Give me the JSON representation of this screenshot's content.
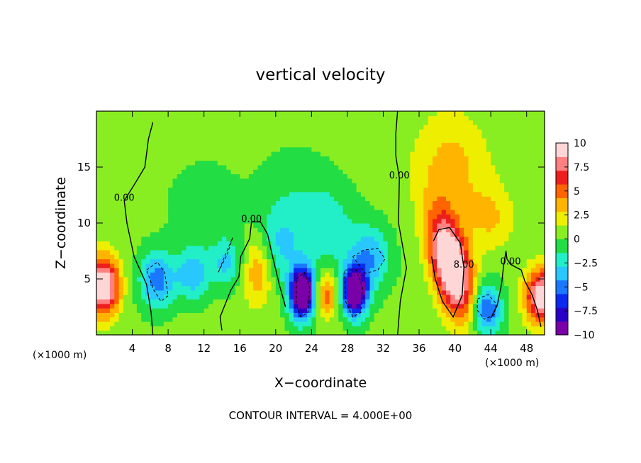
{
  "chart_data": {
    "type": "heatmap",
    "title": "vertical velocity",
    "xlabel": "X−coordinate",
    "ylabel": "Z−coordinate",
    "x_unit_left": "(×1000 m)",
    "x_unit_right": "(×1000 m)",
    "footer": "CONTOUR INTERVAL = 4.000E+00",
    "xlim": [
      0,
      50
    ],
    "ylim": [
      0,
      20
    ],
    "x_ticks": [
      4,
      8,
      12,
      16,
      20,
      24,
      28,
      32,
      36,
      40,
      44,
      48
    ],
    "x_tick_labels": [
      "4",
      "8",
      "12",
      "16",
      "20",
      "24",
      "28",
      "32",
      "36",
      "40",
      "44",
      "48"
    ],
    "y_ticks": [
      5,
      10,
      15
    ],
    "y_tick_labels": [
      "5",
      "10",
      "15"
    ],
    "colorbar": {
      "range": [
        -10,
        10
      ],
      "ticks": [
        10,
        7.5,
        5,
        2.5,
        0,
        -2.5,
        -5,
        -7.5,
        -10
      ],
      "tick_labels": [
        "10",
        "7.5",
        "5",
        "2.5",
        "0",
        "−2.5",
        "−5",
        "−7.5",
        "−10"
      ],
      "colors": [
        "#7a00a8",
        "#2a00c8",
        "#0a2af0",
        "#1a78ff",
        "#28c8ff",
        "#22eec8",
        "#22dd44",
        "#88ee22",
        "#eeee00",
        "#ffb400",
        "#ff6400",
        "#ee1e1e",
        "#ff8080",
        "#ffd6d6"
      ]
    },
    "features": [
      {
        "x": 0.8,
        "z": 4.4,
        "w": 11,
        "sx": 1.2,
        "sz": 1.8,
        "angle": 0
      },
      {
        "x": 23.0,
        "z": 3.8,
        "w": -14,
        "sx": 1.0,
        "sz": 1.6,
        "angle": 0
      },
      {
        "x": 28.8,
        "z": 3.9,
        "w": -13,
        "sx": 1.0,
        "sz": 1.5,
        "angle": 0
      },
      {
        "x": 39.6,
        "z": 6.2,
        "w": 13,
        "sx": 1.4,
        "sz": 3.2,
        "angle": -0.3
      },
      {
        "x": 49.7,
        "z": 3.5,
        "w": 10,
        "sx": 1.3,
        "sz": 1.7,
        "angle": 0
      },
      {
        "x": 43.5,
        "z": 2.3,
        "w": -6.5,
        "sx": 1.2,
        "sz": 1.6,
        "angle": 0
      },
      {
        "x": 25.6,
        "z": 3.6,
        "w": 5,
        "sx": 1.0,
        "sz": 1.4,
        "angle": 0
      },
      {
        "x": 18.0,
        "z": 5.8,
        "w": 4,
        "sx": 1.1,
        "sz": 2.2,
        "angle": 0
      },
      {
        "x": 6.8,
        "z": 5.0,
        "w": -5.5,
        "sx": 1.4,
        "sz": 1.8,
        "angle": 0
      },
      {
        "x": 10.8,
        "z": 5.5,
        "w": -4.5,
        "sx": 1.3,
        "sz": 1.6,
        "angle": 0
      },
      {
        "x": 14.5,
        "z": 6.5,
        "w": -3.5,
        "sx": 1.2,
        "sz": 1.5,
        "angle": 0
      },
      {
        "x": 20.5,
        "z": 8.0,
        "w": -3,
        "sx": 1.8,
        "sz": 2.2,
        "angle": 0
      },
      {
        "x": 30.5,
        "z": 7.0,
        "w": -4.5,
        "sx": 1.6,
        "sz": 2.0,
        "angle": 0
      },
      {
        "x": 26.0,
        "z": 9.5,
        "w": -2.5,
        "sx": 2.0,
        "sz": 2.5,
        "angle": 0
      },
      {
        "x": 39.5,
        "z": 15.0,
        "w": 3,
        "sx": 3.0,
        "sz": 3.5,
        "angle": 0
      },
      {
        "x": 44.0,
        "z": 10.5,
        "w": 2.5,
        "sx": 1.8,
        "sz": 2.0,
        "angle": 0
      },
      {
        "x": 12.0,
        "z": 11.5,
        "w": -1.5,
        "sx": 2.5,
        "sz": 2.5,
        "angle": 0
      },
      {
        "x": 22.0,
        "z": 12.0,
        "w": -1.5,
        "sx": 3.0,
        "sz": 3.0,
        "angle": 0
      }
    ],
    "contour_lines": [
      {
        "label": "0.00",
        "points": [
          [
            6.3,
            0
          ],
          [
            6.1,
            2
          ],
          [
            5.6,
            4.5
          ],
          [
            4.2,
            7
          ],
          [
            3.4,
            10
          ],
          [
            3.1,
            12
          ],
          [
            4.2,
            13.4
          ],
          [
            5.4,
            15
          ],
          [
            5.8,
            17.5
          ],
          [
            6.3,
            19
          ]
        ]
      },
      {
        "label": "0.00",
        "points": [
          [
            33.6,
            0
          ],
          [
            33.9,
            3
          ],
          [
            34.6,
            6
          ],
          [
            33.7,
            10
          ],
          [
            33.8,
            14
          ],
          [
            33.4,
            16
          ],
          [
            33.4,
            18
          ],
          [
            33.6,
            20
          ]
        ]
      },
      {
        "label": "0.00",
        "points": [
          [
            14,
            0.4
          ],
          [
            13.8,
            1.6
          ],
          [
            15,
            4
          ],
          [
            15.9,
            5.2
          ],
          [
            16.1,
            7
          ],
          [
            17.1,
            8.6
          ],
          [
            17.3,
            10.1
          ],
          [
            18.3,
            10.1
          ],
          [
            19.1,
            9
          ],
          [
            19.6,
            7.2
          ],
          [
            20.4,
            4.5
          ],
          [
            21.1,
            2.5
          ]
        ]
      },
      {
        "label": "8.00",
        "points": [
          [
            37.4,
            7
          ],
          [
            37.8,
            5
          ],
          [
            38.6,
            3
          ],
          [
            39.8,
            1.6
          ],
          [
            40.8,
            3.5
          ],
          [
            41.0,
            6
          ],
          [
            40.6,
            8.2
          ],
          [
            39.4,
            9.6
          ],
          [
            38.2,
            9.4
          ],
          [
            37.6,
            8.4
          ]
        ]
      },
      {
        "label": "0.00",
        "points": [
          [
            44.0,
            1.5
          ],
          [
            44.7,
            2.6
          ],
          [
            45.2,
            4.5
          ],
          [
            45.4,
            6
          ],
          [
            45.7,
            7.5
          ],
          [
            45.8,
            6.8
          ],
          [
            46.2,
            6.3
          ],
          [
            47.4,
            5.8
          ],
          [
            47.8,
            4.8
          ],
          [
            48.6,
            3.6
          ],
          [
            49.2,
            2.2
          ],
          [
            49.6,
            0.7
          ]
        ]
      }
    ],
    "dashed_contours": [
      [
        [
          5.6,
          5.8
        ],
        [
          6.8,
          6.5
        ],
        [
          7.6,
          5.6
        ],
        [
          8.0,
          3.5
        ],
        [
          7.2,
          3.0
        ],
        [
          6.4,
          4.0
        ],
        [
          5.6,
          5.8
        ]
      ],
      [
        [
          13.6,
          5.6
        ],
        [
          14.6,
          7.2
        ],
        [
          15.2,
          8.7
        ],
        [
          14.5,
          7.4
        ],
        [
          13.6,
          5.6
        ]
      ],
      [
        [
          22.3,
          5.0
        ],
        [
          23.2,
          5.6
        ],
        [
          23.8,
          4.2
        ],
        [
          23.6,
          2.0
        ],
        [
          22.8,
          1.6
        ],
        [
          22.3,
          2.8
        ],
        [
          22.3,
          5.0
        ]
      ],
      [
        [
          27.7,
          5.8
        ],
        [
          29.0,
          5.8
        ],
        [
          29.7,
          4.2
        ],
        [
          29.5,
          2.0
        ],
        [
          28.6,
          1.6
        ],
        [
          27.8,
          3.0
        ],
        [
          27.7,
          5.8
        ]
      ],
      [
        [
          28.6,
          7.0
        ],
        [
          29.9,
          7.6
        ],
        [
          31.4,
          7.7
        ],
        [
          32.2,
          6.8
        ],
        [
          31.4,
          5.8
        ],
        [
          30.0,
          5.5
        ],
        [
          28.6,
          7.0
        ]
      ],
      [
        [
          42.5,
          3.2
        ],
        [
          43.7,
          3.6
        ],
        [
          44.6,
          2.8
        ],
        [
          44.4,
          1.8
        ],
        [
          43.3,
          1.4
        ],
        [
          42.5,
          2.2
        ],
        [
          42.5,
          3.2
        ]
      ]
    ]
  }
}
